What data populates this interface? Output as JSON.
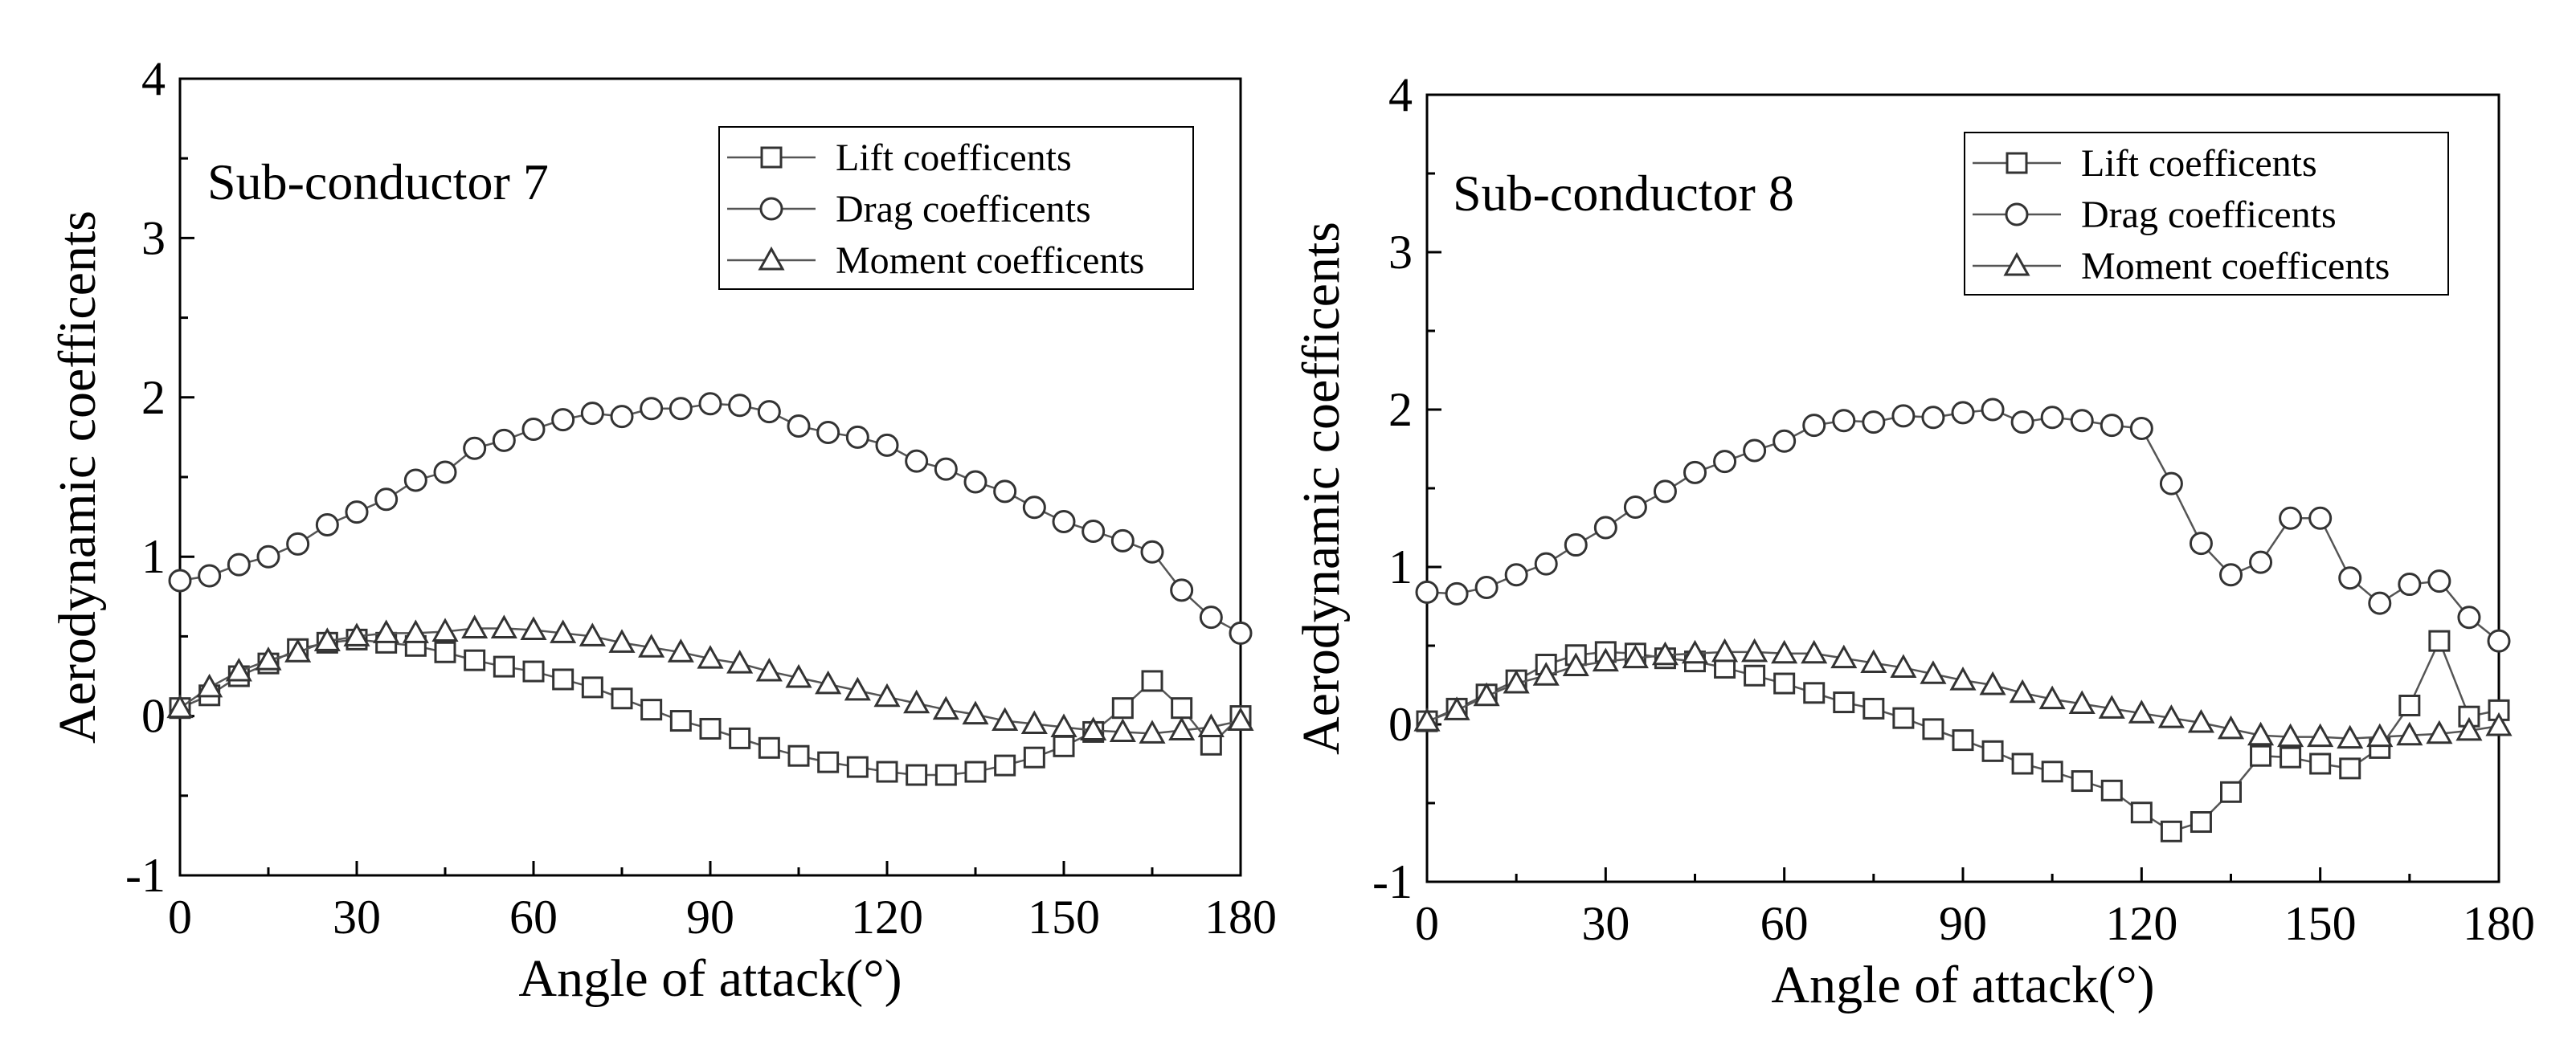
{
  "colors": {
    "axis": "#000000",
    "line": "#555555",
    "marker_stroke": "#333333",
    "marker_fill": "#ffffff"
  },
  "chart_data": [
    {
      "type": "line",
      "annotation": "Sub-conductor 7",
      "xlabel": "Angle of attack(°)",
      "ylabel": "Aerodynamic coefficents",
      "xlim": [
        0,
        180
      ],
      "ylim": [
        -1,
        4
      ],
      "xticks": [
        "0",
        "30",
        "60",
        "90",
        "120",
        "150",
        "180"
      ],
      "yticks": [
        "-1",
        "0",
        "1",
        "2",
        "3",
        "4"
      ],
      "legend_position": "top-right",
      "x": [
        0,
        5,
        10,
        15,
        20,
        25,
        30,
        35,
        40,
        45,
        50,
        55,
        60,
        65,
        70,
        75,
        80,
        85,
        90,
        95,
        100,
        105,
        110,
        115,
        120,
        125,
        130,
        135,
        140,
        145,
        150,
        155,
        160,
        165,
        170,
        175,
        180
      ],
      "series": [
        {
          "name": "Lift coefficents",
          "marker": "square",
          "values": [
            0.05,
            0.13,
            0.25,
            0.33,
            0.42,
            0.46,
            0.48,
            0.46,
            0.44,
            0.4,
            0.35,
            0.31,
            0.28,
            0.23,
            0.18,
            0.11,
            0.04,
            -0.03,
            -0.08,
            -0.14,
            -0.2,
            -0.25,
            -0.29,
            -0.32,
            -0.35,
            -0.37,
            -0.37,
            -0.35,
            -0.31,
            -0.26,
            -0.19,
            -0.1,
            0.05,
            0.22,
            0.05,
            -0.18,
            0.0
          ]
        },
        {
          "name": "Drag coefficents",
          "marker": "circle",
          "values": [
            0.85,
            0.88,
            0.95,
            1.0,
            1.08,
            1.2,
            1.28,
            1.36,
            1.48,
            1.53,
            1.68,
            1.73,
            1.8,
            1.86,
            1.9,
            1.88,
            1.93,
            1.93,
            1.96,
            1.95,
            1.91,
            1.82,
            1.78,
            1.75,
            1.7,
            1.6,
            1.55,
            1.47,
            1.41,
            1.31,
            1.22,
            1.16,
            1.1,
            1.03,
            0.79,
            0.62,
            0.52
          ]
        },
        {
          "name": "Moment coefficents",
          "marker": "triangle",
          "values": [
            0.05,
            0.18,
            0.28,
            0.35,
            0.4,
            0.47,
            0.5,
            0.52,
            0.52,
            0.53,
            0.55,
            0.55,
            0.54,
            0.52,
            0.5,
            0.46,
            0.43,
            0.4,
            0.36,
            0.33,
            0.28,
            0.24,
            0.2,
            0.16,
            0.12,
            0.08,
            0.04,
            0.01,
            -0.03,
            -0.05,
            -0.07,
            -0.09,
            -0.1,
            -0.11,
            -0.09,
            -0.07,
            -0.03
          ]
        }
      ]
    },
    {
      "type": "line",
      "annotation": "Sub-conductor 8",
      "xlabel": "Angle of attack(°)",
      "ylabel": "Aerodynamic coefficents",
      "xlim": [
        0,
        180
      ],
      "ylim": [
        -1,
        4
      ],
      "xticks": [
        "0",
        "30",
        "60",
        "90",
        "120",
        "150",
        "180"
      ],
      "yticks": [
        "-1",
        "0",
        "1",
        "2",
        "3",
        "4"
      ],
      "legend_position": "top-right",
      "x": [
        0,
        5,
        10,
        15,
        20,
        25,
        30,
        35,
        40,
        45,
        50,
        55,
        60,
        65,
        70,
        75,
        80,
        85,
        90,
        95,
        100,
        105,
        110,
        115,
        120,
        125,
        130,
        135,
        140,
        145,
        150,
        155,
        160,
        165,
        170,
        175,
        180
      ],
      "series": [
        {
          "name": "Lift coefficents",
          "marker": "square",
          "values": [
            0.02,
            0.1,
            0.19,
            0.28,
            0.38,
            0.44,
            0.46,
            0.45,
            0.42,
            0.4,
            0.36,
            0.31,
            0.26,
            0.2,
            0.14,
            0.1,
            0.04,
            -0.03,
            -0.1,
            -0.17,
            -0.25,
            -0.3,
            -0.36,
            -0.42,
            -0.56,
            -0.68,
            -0.62,
            -0.43,
            -0.2,
            -0.21,
            -0.25,
            -0.28,
            -0.15,
            0.12,
            0.53,
            0.05,
            0.09
          ]
        },
        {
          "name": "Drag coefficents",
          "marker": "circle",
          "values": [
            0.84,
            0.83,
            0.87,
            0.95,
            1.02,
            1.14,
            1.25,
            1.38,
            1.48,
            1.6,
            1.67,
            1.74,
            1.8,
            1.9,
            1.93,
            1.92,
            1.96,
            1.95,
            1.98,
            2.0,
            1.92,
            1.95,
            1.93,
            1.9,
            1.88,
            1.53,
            1.15,
            0.95,
            1.03,
            1.31,
            1.31,
            0.93,
            0.77,
            0.89,
            0.91,
            0.68,
            0.53
          ]
        },
        {
          "name": "Moment coefficents",
          "marker": "triangle",
          "values": [
            0.02,
            0.09,
            0.18,
            0.26,
            0.31,
            0.37,
            0.4,
            0.42,
            0.44,
            0.45,
            0.46,
            0.46,
            0.45,
            0.45,
            0.42,
            0.39,
            0.36,
            0.32,
            0.28,
            0.25,
            0.2,
            0.16,
            0.13,
            0.1,
            0.07,
            0.04,
            0.01,
            -0.03,
            -0.07,
            -0.08,
            -0.08,
            -0.09,
            -0.08,
            -0.07,
            -0.06,
            -0.04,
            -0.01
          ]
        }
      ]
    }
  ]
}
